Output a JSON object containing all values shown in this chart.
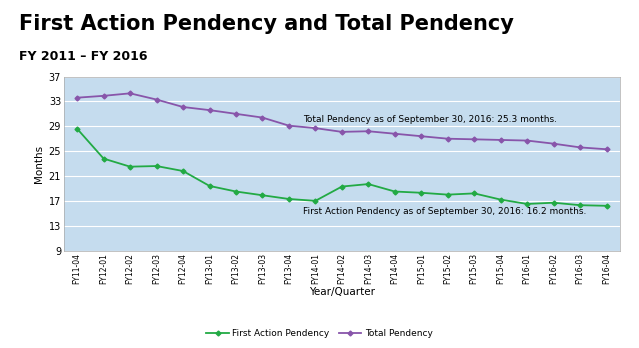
{
  "title": "First Action Pendency and Total Pendency",
  "subtitle": "FY 2011 – FY 2016",
  "xlabel": "Year/Quarter",
  "ylabel": "Months",
  "fig_bg_color": "#ffffff",
  "plot_bg_color": "#c5dcee",
  "categories": [
    "FY11-04",
    "FY12-01",
    "FY12-02",
    "FY12-03",
    "FY12-04",
    "FY13-01",
    "FY13-02",
    "FY13-03",
    "FY13-04",
    "FY14-01",
    "FY14-02",
    "FY14-03",
    "FY14-04",
    "FY15-01",
    "FY15-02",
    "FY15-03",
    "FY15-04",
    "FY16-01",
    "FY16-02",
    "FY16-03",
    "FY16-04"
  ],
  "first_action": [
    28.6,
    23.8,
    22.5,
    22.6,
    21.8,
    19.4,
    18.5,
    17.9,
    17.3,
    17.0,
    19.3,
    19.7,
    18.5,
    18.3,
    18.0,
    18.2,
    17.2,
    16.5,
    16.7,
    16.3,
    16.2
  ],
  "total_pendency": [
    33.6,
    33.9,
    34.3,
    33.3,
    32.1,
    31.6,
    31.0,
    30.4,
    29.1,
    28.7,
    28.1,
    28.2,
    27.8,
    27.4,
    27.0,
    26.9,
    26.8,
    26.7,
    26.2,
    25.6,
    25.3
  ],
  "first_action_color": "#22aa44",
  "total_pendency_color": "#8855aa",
  "ylim": [
    9.0,
    37.0
  ],
  "yticks": [
    9.0,
    13.0,
    17.0,
    21.0,
    25.0,
    29.0,
    33.0,
    37.0
  ],
  "annotation_total": "Total Pendency as of September 30, 2016: 25.3 months.",
  "annotation_fa": "First Action Pendency as of September 30, 2016: 16.2 months.",
  "legend_labels": [
    "First Action Pendency",
    "Total Pendency"
  ],
  "title_fontsize": 15,
  "subtitle_fontsize": 9
}
